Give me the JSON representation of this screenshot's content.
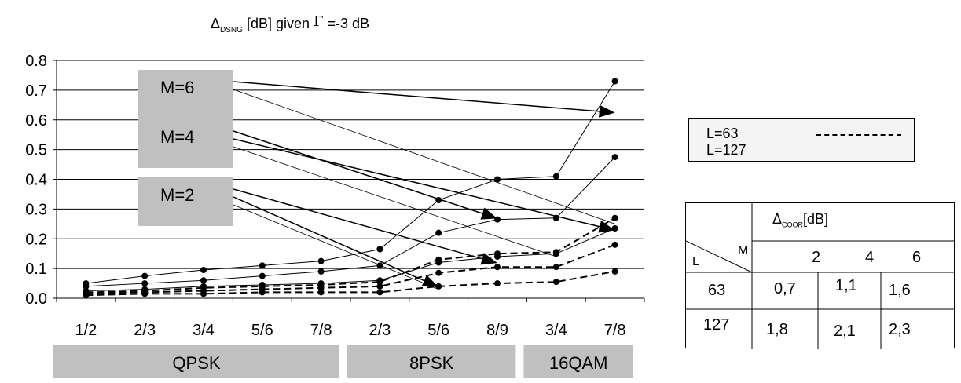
{
  "chart_data": {
    "type": "line",
    "title": {
      "prefix": "Δ",
      "sub": "DSNG",
      "mid": "[dB] given",
      "gamma": "Γ",
      "suffix": "=-3 dB"
    },
    "ylim": [
      0,
      0.8
    ],
    "yticks": [
      "0.0",
      "0.1",
      "0.2",
      "0.3",
      "0.4",
      "0.5",
      "0.6",
      "0.7",
      "0.8"
    ],
    "categories": [
      "1/2",
      "2/3",
      "3/4",
      "5/6",
      "7/8",
      "2/3",
      "5/6",
      "8/9",
      "3/4",
      "7/8"
    ],
    "groups": [
      {
        "label": "QPSK",
        "from": 0,
        "to": 4
      },
      {
        "label": "8PSK",
        "from": 5,
        "to": 7
      },
      {
        "label": "16QAM",
        "from": 8,
        "to": 9
      }
    ],
    "grid": true,
    "series": [
      {
        "style": "solid",
        "values": [
          0.05,
          0.075,
          0.095,
          0.11,
          0.125,
          0.165,
          0.33,
          0.4,
          0.41,
          0.73
        ]
      },
      {
        "style": "solid",
        "values": [
          0.04,
          0.05,
          0.06,
          0.075,
          0.09,
          0.11,
          0.22,
          0.265,
          0.27,
          0.475
        ]
      },
      {
        "style": "solid",
        "values": [
          0.025,
          0.03,
          0.04,
          0.045,
          0.05,
          0.06,
          0.12,
          0.14,
          0.15,
          0.235
        ]
      },
      {
        "style": "dashed",
        "values": [
          0.02,
          0.025,
          0.035,
          0.04,
          0.045,
          0.055,
          0.13,
          0.15,
          0.155,
          0.27
        ]
      },
      {
        "style": "dashed",
        "values": [
          0.015,
          0.02,
          0.025,
          0.03,
          0.035,
          0.04,
          0.085,
          0.105,
          0.105,
          0.18
        ]
      },
      {
        "style": "dashed",
        "values": [
          0.01,
          0.015,
          0.015,
          0.02,
          0.02,
          0.02,
          0.04,
          0.05,
          0.055,
          0.09
        ]
      }
    ],
    "annotations": [
      {
        "label": "M=6",
        "pointers": [
          [
            9,
            0.625,
            "arrow"
          ],
          [
            9,
            0.25,
            "line"
          ]
        ]
      },
      {
        "label": "M=4",
        "pointers": [
          [
            7,
            0.27,
            "arrow"
          ],
          [
            9,
            0.23,
            "arrow"
          ],
          [
            8,
            0.14,
            "line"
          ]
        ]
      },
      {
        "label": "M=2",
        "pointers": [
          [
            7,
            0.12,
            "arrow"
          ],
          [
            6,
            0.04,
            "arrow"
          ],
          [
            6,
            0.03,
            "line"
          ]
        ]
      }
    ]
  },
  "legend": {
    "items": [
      {
        "label": "L=63",
        "style": "dashed"
      },
      {
        "label": "L=127",
        "style": "solid"
      }
    ]
  },
  "coor_table": {
    "header": {
      "prefix": "Δ",
      "sub": "COOR",
      "unit": "[dB]"
    },
    "corner_l": "L",
    "corner_m": "M",
    "m_values": [
      "2",
      "4",
      "6"
    ],
    "rows": [
      {
        "l": "63",
        "values": [
          "0,7",
          "1,1",
          "1,6"
        ]
      },
      {
        "l": "127",
        "values": [
          "1,8",
          "2,1",
          "2,3"
        ]
      }
    ]
  }
}
